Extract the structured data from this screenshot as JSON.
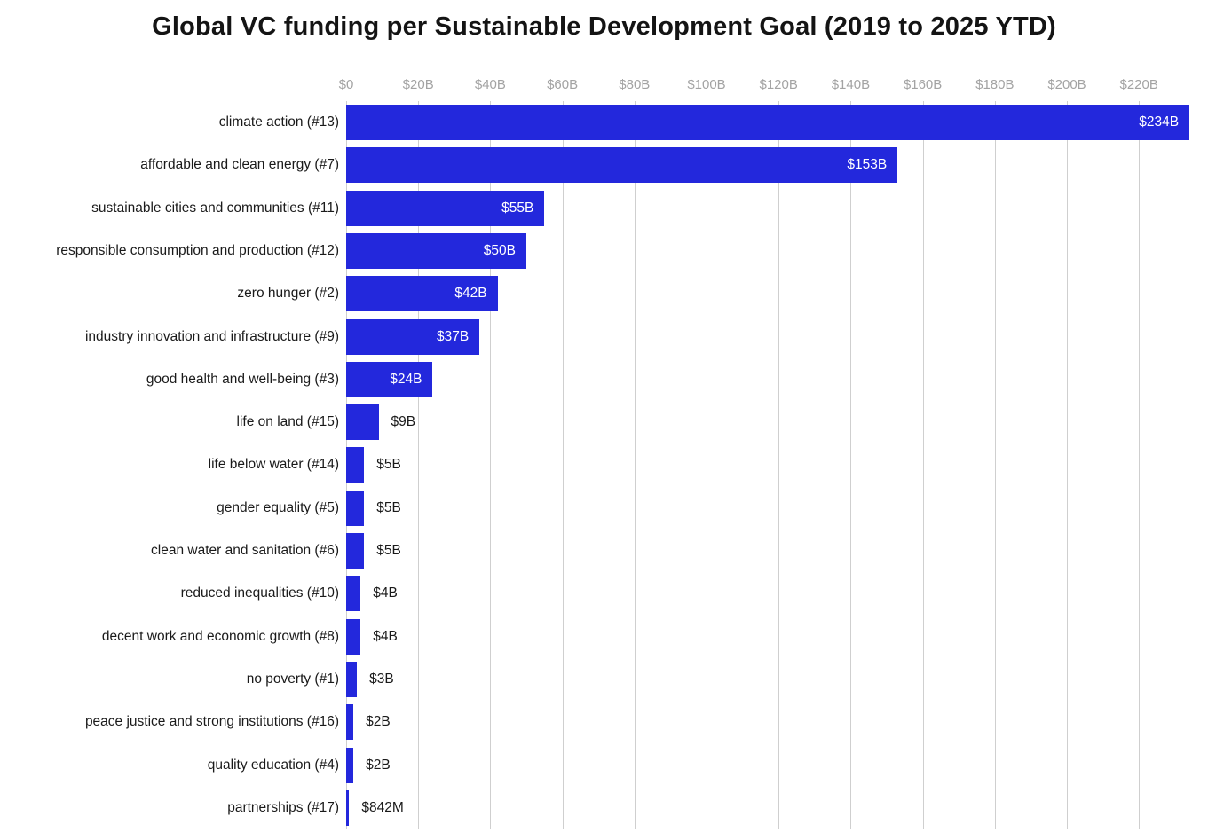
{
  "title": "Global VC funding per Sustainable Development Goal (2019 to 2025 YTD)",
  "colors": {
    "bar": "#2328dc",
    "grid": "#cfcfcf",
    "tick_label": "#a3a3a3",
    "category_label": "#1a1a1a",
    "value_label_inside": "#ffffff",
    "value_label_outside": "#1a1a1a",
    "title": "#141414",
    "background": "#ffffff"
  },
  "chart_data": {
    "type": "bar",
    "orientation": "horizontal",
    "title": "Global VC funding per Sustainable Development Goal (2019 to 2025 YTD)",
    "xlabel": "",
    "ylabel": "",
    "grid": true,
    "legend": false,
    "x_axis": {
      "unit": "USD billions",
      "tick_labels": [
        "$0",
        "$20B",
        "$40B",
        "$60B",
        "$80B",
        "$100B",
        "$120B",
        "$140B",
        "$160B",
        "$180B",
        "$200B",
        "$220B"
      ],
      "tick_values_billions": [
        0,
        20,
        40,
        60,
        80,
        100,
        120,
        140,
        160,
        180,
        200,
        220
      ],
      "range_billions": [
        0,
        234
      ]
    },
    "categories": [
      "climate action (#13)",
      "affordable and clean energy (#7)",
      "sustainable cities and communities (#11)",
      "responsible consumption and production (#12)",
      "zero hunger (#2)",
      "industry innovation and infrastructure (#9)",
      "good health and well-being (#3)",
      "life on land (#15)",
      "life below water (#14)",
      "gender equality (#5)",
      "clean water and sanitation (#6)",
      "reduced inequalities (#10)",
      "decent work and economic growth (#8)",
      "no poverty (#1)",
      "peace justice and strong institutions (#16)",
      "quality education (#4)",
      "partnerships (#17)"
    ],
    "values_billions": [
      234,
      153,
      55,
      50,
      42,
      37,
      24,
      9,
      5,
      5,
      5,
      4,
      4,
      3,
      2,
      2,
      0.842
    ],
    "value_labels": [
      "$234B",
      "$153B",
      "$55B",
      "$50B",
      "$42B",
      "$37B",
      "$24B",
      "$9B",
      "$5B",
      "$5B",
      "$5B",
      "$4B",
      "$4B",
      "$3B",
      "$2B",
      "$2B",
      "$842M"
    ]
  }
}
